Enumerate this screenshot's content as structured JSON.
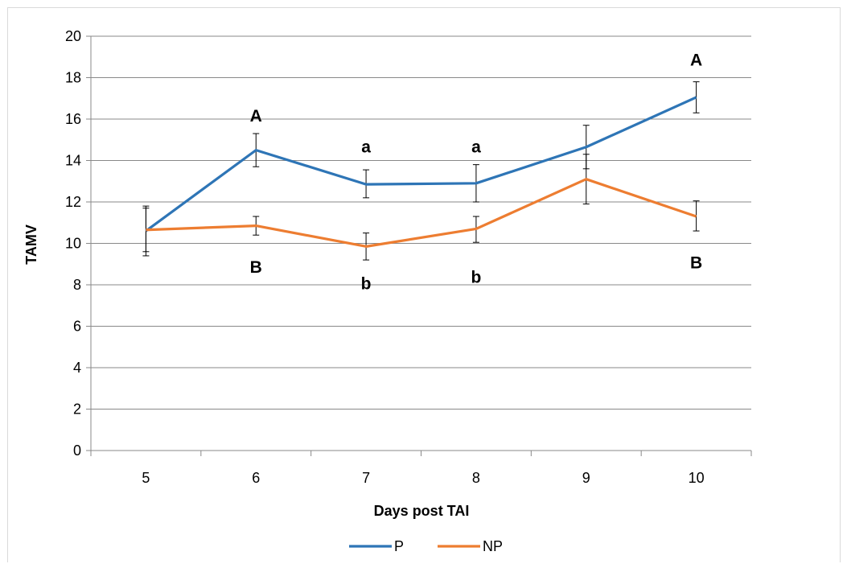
{
  "chart_data": {
    "type": "line",
    "title": "",
    "xlabel": "Days post TAI",
    "ylabel": "TAMV",
    "categories": [
      "5",
      "6",
      "7",
      "8",
      "9",
      "10"
    ],
    "ylim": [
      0,
      20
    ],
    "yticks": [
      "0",
      "2",
      "4",
      "6",
      "8",
      "10",
      "12",
      "14",
      "16",
      "18",
      "20"
    ],
    "grid": true,
    "legend_position": "bottom",
    "series": [
      {
        "name": "P",
        "color": "#2E75B6",
        "values": [
          10.6,
          14.5,
          12.85,
          12.9,
          14.65,
          17.05
        ],
        "error_low": [
          9.6,
          13.7,
          12.2,
          12.0,
          13.6,
          16.3
        ],
        "error_high": [
          11.7,
          15.3,
          13.55,
          13.8,
          15.7,
          17.8
        ]
      },
      {
        "name": "NP",
        "color": "#ED7D31",
        "values": [
          10.65,
          10.85,
          9.85,
          10.7,
          13.1,
          11.3
        ],
        "error_low": [
          9.4,
          10.4,
          9.2,
          10.05,
          11.9,
          10.6
        ],
        "error_high": [
          11.8,
          11.3,
          10.5,
          11.3,
          14.3,
          12.05
        ]
      }
    ],
    "annotations": [
      {
        "text": "A",
        "category": "6",
        "y": 16.2
      },
      {
        "text": "a",
        "category": "7",
        "y": 14.7
      },
      {
        "text": "a",
        "category": "8",
        "y": 14.7
      },
      {
        "text": "A",
        "category": "10",
        "y": 18.9
      },
      {
        "text": "B",
        "category": "6",
        "y": 8.9
      },
      {
        "text": "b",
        "category": "7",
        "y": 8.1
      },
      {
        "text": "b",
        "category": "8",
        "y": 8.4
      },
      {
        "text": "B",
        "category": "10",
        "y": 9.1
      }
    ]
  }
}
